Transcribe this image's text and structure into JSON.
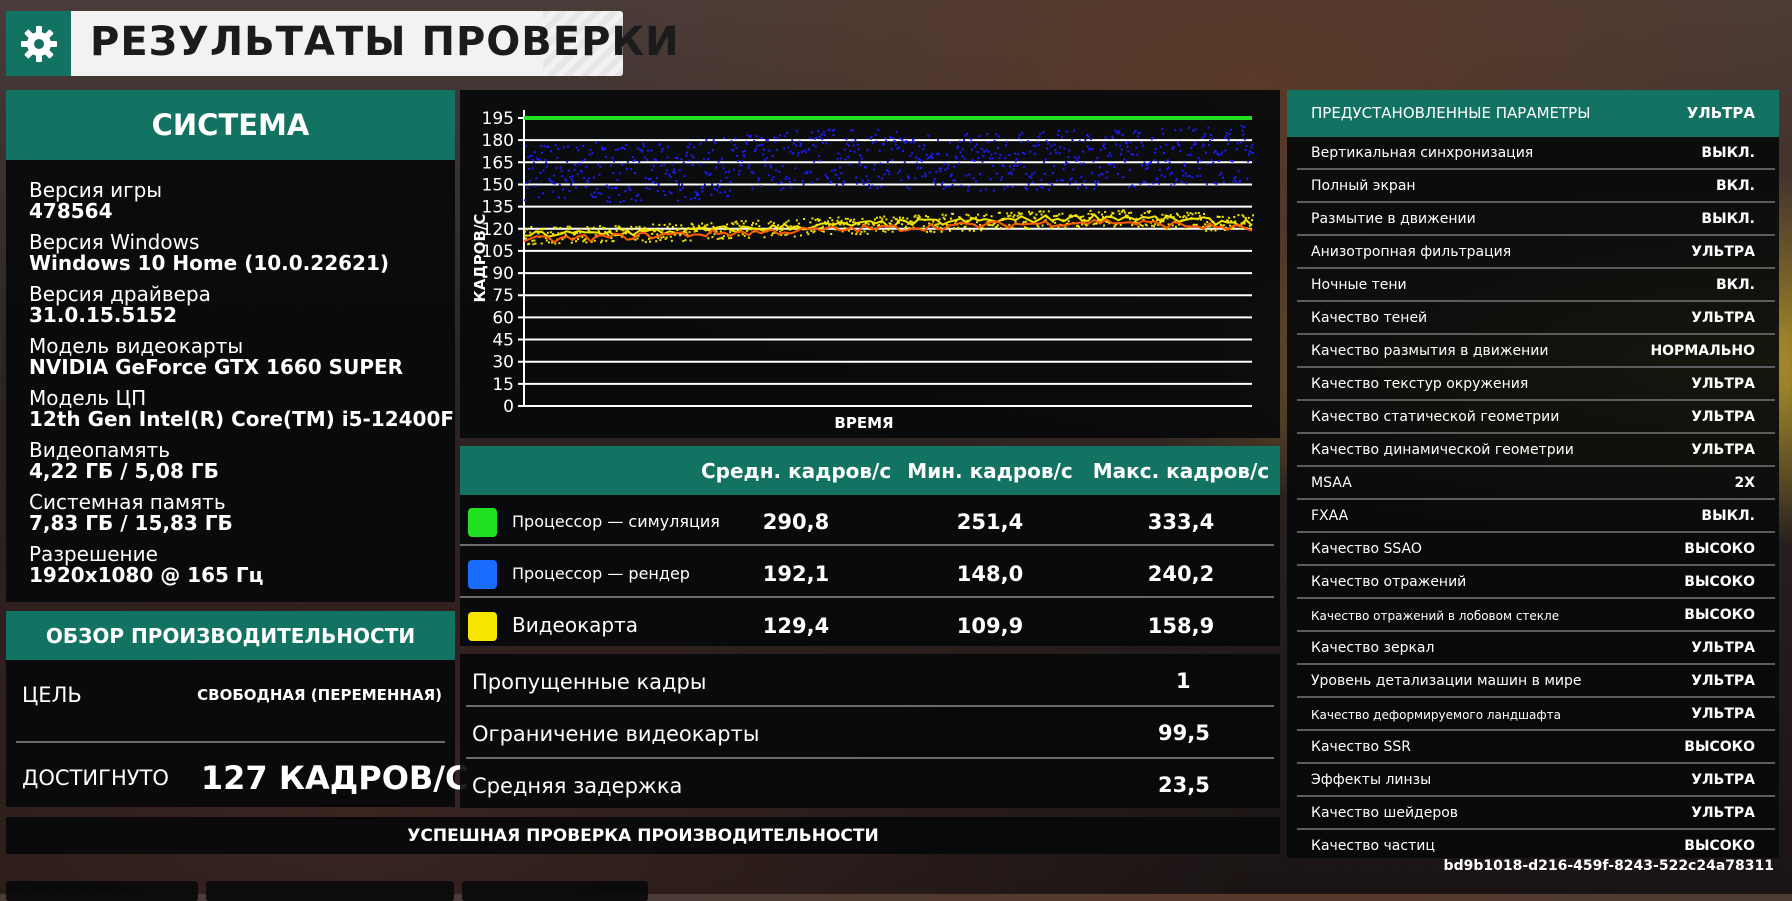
{
  "title": "РЕЗУЛЬТАТЫ ПРОВЕРКИ",
  "system": {
    "header": "СИСТЕМА",
    "items": [
      {
        "label": "Версия игры",
        "value": "478564"
      },
      {
        "label": "Версия Windows",
        "value": "Windows 10 Home (10.0.22621)"
      },
      {
        "label": "Версия драйвера",
        "value": "31.0.15.5152"
      },
      {
        "label": "Модель видеокарты",
        "value": "NVIDIA GeForce GTX 1660 SUPER"
      },
      {
        "label": "Модель ЦП",
        "value": "12th Gen Intel(R) Core(TM) i5-12400F"
      },
      {
        "label": "Видеопамять",
        "value": "4,22 ГБ / 5,08 ГБ"
      },
      {
        "label": "Системная память",
        "value": "7,83 ГБ / 15,83 ГБ"
      },
      {
        "label": "Разрешение",
        "value": "1920x1080 @ 165 Гц"
      }
    ]
  },
  "performance": {
    "header": "ОБЗОР ПРОИЗВОДИТЕЛЬНОСТИ",
    "goal_label": "ЦЕЛЬ",
    "goal_value": "СВОБОДНАЯ (ПЕРЕМЕННАЯ)",
    "achieved_label": "ДОСТИГНУТО",
    "achieved_value": "127 КАДРОВ/С",
    "achieved_color": "#ff5a00"
  },
  "chart_data": {
    "type": "scatter",
    "xlabel": "ВРЕМЯ",
    "ylabel": "КАДРОВ/С",
    "ylim": [
      0,
      195
    ],
    "yticks": [
      0,
      15,
      30,
      45,
      60,
      75,
      90,
      105,
      120,
      135,
      150,
      165,
      180,
      195
    ],
    "grid": true,
    "series": [
      {
        "color": "#22e022",
        "values": [
          195,
          195,
          195,
          195,
          195,
          195
        ]
      },
      {
        "color": "#1c1cff",
        "values": [
          160,
          158,
          170,
          165,
          168,
          172
        ]
      },
      {
        "color": "#f2e600",
        "values": [
          116,
          118,
          122,
          125,
          128,
          124
        ]
      },
      {
        "color": "#ff5a00",
        "values": [
          112,
          116,
          119,
          122,
          125,
          120
        ]
      }
    ]
  },
  "fps_table": {
    "headers": [
      "Средн. кадров/с",
      "Мин. кадров/с",
      "Макс. кадров/с"
    ],
    "rows": [
      {
        "name": "Процессор — симуляция",
        "color": "#22e022",
        "avg": "290,8",
        "min": "251,4",
        "max": "333,4"
      },
      {
        "name": "Процессор — рендер",
        "color": "#1a6cff",
        "avg": "192,1",
        "min": "148,0",
        "max": "240,2"
      },
      {
        "name": "Видеокарта",
        "color": "#f7e600",
        "avg": "129,4",
        "min": "109,9",
        "max": "158,9"
      }
    ]
  },
  "stats": [
    {
      "label": "Пропущенные кадры",
      "value": "1"
    },
    {
      "label": "Ограничение видеокарты",
      "value": "99,5"
    },
    {
      "label": "Средняя задержка",
      "value": "23,5"
    }
  ],
  "success": "УСПЕШНАЯ ПРОВЕРКА ПРОИЗВОДИТЕЛЬНОСТИ",
  "settings": {
    "preset_label": "ПРЕДУСТАНОВЛЕННЫЕ ПАРАМЕТРЫ",
    "preset_value": "УЛЬТРА",
    "items": [
      {
        "label": "Вертикальная синхронизация",
        "value": "ВЫКЛ."
      },
      {
        "label": "Полный экран",
        "value": "ВКЛ."
      },
      {
        "label": "Размытие в движении",
        "value": "ВЫКЛ."
      },
      {
        "label": "Анизотропная фильтрация",
        "value": "УЛЬТРА"
      },
      {
        "label": "Ночные тени",
        "value": "ВКЛ."
      },
      {
        "label": "Качество теней",
        "value": "УЛЬТРА"
      },
      {
        "label": "Качество размытия в движении",
        "value": "НОРМАЛЬНО"
      },
      {
        "label": "Качество текстур окружения",
        "value": "УЛЬТРА"
      },
      {
        "label": "Качество статической геометрии",
        "value": "УЛЬТРА"
      },
      {
        "label": "Качество динамической геометрии",
        "value": "УЛЬТРА"
      },
      {
        "label": "MSAA",
        "value": "2X"
      },
      {
        "label": "FXAA",
        "value": "ВЫКЛ."
      },
      {
        "label": "Качество SSAO",
        "value": "ВЫСОКО"
      },
      {
        "label": "Качество отражений",
        "value": "ВЫСОКО"
      },
      {
        "label": "Качество отражений в лобовом стекле",
        "value": "ВЫСОКО"
      },
      {
        "label": "Качество зеркал",
        "value": "УЛЬТРА"
      },
      {
        "label": "Уровень детализации машин в мире",
        "value": "УЛЬТРА"
      },
      {
        "label": "Качество деформируемого ландшафта",
        "value": "УЛЬТРА"
      },
      {
        "label": "Качество SSR",
        "value": "ВЫСОКО"
      },
      {
        "label": "Эффекты линзы",
        "value": "УЛЬТРА"
      },
      {
        "label": "Качество шейдеров",
        "value": "УЛЬТРА"
      },
      {
        "label": "Качество частиц",
        "value": "ВЫСОКО"
      }
    ]
  },
  "guid": "bd9b1018-d216-459f-8243-522c24a78311"
}
